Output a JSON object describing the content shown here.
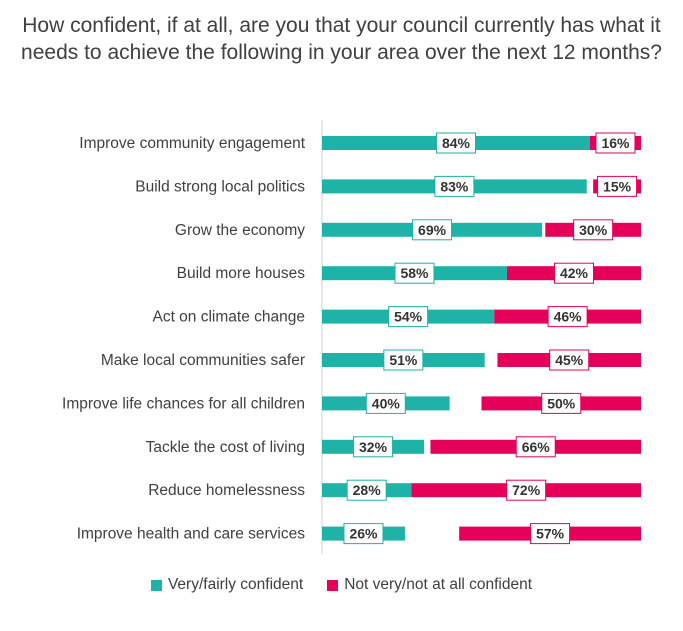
{
  "chart_data": {
    "type": "bar",
    "orientation": "horizontal-stacked",
    "title": "How confident, if at all, are you that your council currently has what it needs to achieve the following in your area over the next 12 months?",
    "categories": [
      "Improve community engagement",
      "Build strong local politics",
      "Grow the economy",
      "Build more houses",
      "Act on climate change",
      "Make local communities safer",
      "Improve life chances for all children",
      "Tackle the cost of living",
      "Reduce homelessness",
      "Improve health and care services"
    ],
    "series": [
      {
        "name": "Very/fairly confident",
        "color": "#1fb2a6",
        "values": [
          84,
          83,
          69,
          58,
          54,
          51,
          40,
          32,
          28,
          26
        ],
        "labels": [
          "84%",
          "83%",
          "69%",
          "58%",
          "54%",
          "51%",
          "40%",
          "32%",
          "28%",
          "26%"
        ]
      },
      {
        "name": "Not very/not at all confident",
        "color": "#e5005a",
        "values": [
          16,
          15,
          30,
          42,
          46,
          45,
          50,
          66,
          72,
          57
        ],
        "labels": [
          "16%",
          "15%",
          "30%",
          "42%",
          "46%",
          "45%",
          "50%",
          "66%",
          "72%",
          "57%"
        ]
      }
    ],
    "xlim": [
      0,
      100
    ],
    "legend_position": "bottom",
    "grid": false
  }
}
